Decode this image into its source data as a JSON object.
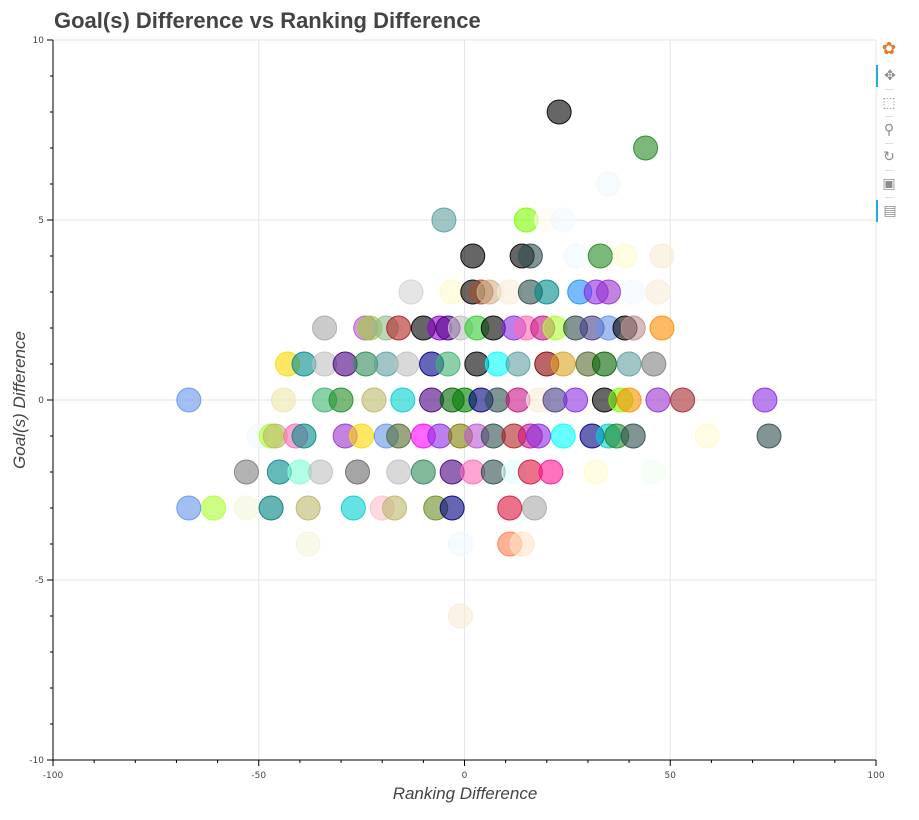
{
  "chart_data": {
    "type": "scatter",
    "title": "Goal(s) Difference vs Ranking Difference",
    "xlabel": "Ranking Difference",
    "ylabel": "Goal(s) Difference",
    "xlim": [
      -100,
      100
    ],
    "ylim": [
      -10,
      10
    ],
    "xticks": [
      -100,
      -50,
      0,
      50,
      100
    ],
    "xtick_labels": [
      "-100",
      "-50",
      "0",
      "50",
      "100"
    ],
    "yticks": [
      -10,
      -5,
      0,
      5,
      10
    ],
    "ytick_labels": [
      "-10",
      "-5",
      "0",
      "5",
      "10"
    ],
    "grid": true,
    "marker_alpha": 0.6,
    "points": [
      {
        "x": 23,
        "y": 8,
        "color": "#000000"
      },
      {
        "x": 44,
        "y": 7,
        "color": "#228b22"
      },
      {
        "x": 35,
        "y": 6,
        "color": "#f0f8ff"
      },
      {
        "x": -5,
        "y": 5,
        "color": "#5f9ea0"
      },
      {
        "x": 15,
        "y": 5,
        "color": "#7cfc00"
      },
      {
        "x": 20,
        "y": 5,
        "color": "#fffaf0"
      },
      {
        "x": 24,
        "y": 5,
        "color": "#f0f8ff"
      },
      {
        "x": 2,
        "y": 4,
        "color": "#000000"
      },
      {
        "x": 14,
        "y": 4,
        "color": "#000000"
      },
      {
        "x": 16,
        "y": 4,
        "color": "#2f4f4f"
      },
      {
        "x": 27,
        "y": 4,
        "color": "#f0f8ff"
      },
      {
        "x": 33,
        "y": 4,
        "color": "#228b22"
      },
      {
        "x": 39,
        "y": 4,
        "color": "#fffacd"
      },
      {
        "x": 48,
        "y": 4,
        "color": "#faebd7"
      },
      {
        "x": -13,
        "y": 3,
        "color": "#d3d3d3"
      },
      {
        "x": -3,
        "y": 3,
        "color": "#fffacd"
      },
      {
        "x": 2,
        "y": 3,
        "color": "#000000"
      },
      {
        "x": 4,
        "y": 3,
        "color": "#a0522d"
      },
      {
        "x": 6,
        "y": 3,
        "color": "#d2b48c"
      },
      {
        "x": 11,
        "y": 3,
        "color": "#faebd7"
      },
      {
        "x": 16,
        "y": 3,
        "color": "#2f4f4f"
      },
      {
        "x": 20,
        "y": 3,
        "color": "#008b8b"
      },
      {
        "x": 28,
        "y": 3,
        "color": "#1e90ff"
      },
      {
        "x": 32,
        "y": 3,
        "color": "#8a2be2"
      },
      {
        "x": 35,
        "y": 3,
        "color": "#9932cc"
      },
      {
        "x": 41,
        "y": 3,
        "color": "#f0f8ff"
      },
      {
        "x": 47,
        "y": 3,
        "color": "#faebd7"
      },
      {
        "x": -34,
        "y": 2,
        "color": "#a9a9a9"
      },
      {
        "x": -24,
        "y": 2,
        "color": "#ba55d3"
      },
      {
        "x": -23,
        "y": 2,
        "color": "#9acd32"
      },
      {
        "x": -19,
        "y": 2,
        "color": "#8fbc8f"
      },
      {
        "x": -16,
        "y": 2,
        "color": "#b22222"
      },
      {
        "x": -10,
        "y": 2,
        "color": "#000000"
      },
      {
        "x": -6,
        "y": 2,
        "color": "#9400d3"
      },
      {
        "x": -4,
        "y": 2,
        "color": "#4b0082"
      },
      {
        "x": -1,
        "y": 2,
        "color": "#c0c0c0"
      },
      {
        "x": 3,
        "y": 2,
        "color": "#32cd32"
      },
      {
        "x": 7,
        "y": 2,
        "color": "#000000"
      },
      {
        "x": 12,
        "y": 2,
        "color": "#8a2be2"
      },
      {
        "x": 15,
        "y": 2,
        "color": "#ff69b4"
      },
      {
        "x": 19,
        "y": 2,
        "color": "#c71585"
      },
      {
        "x": 22,
        "y": 2,
        "color": "#adff2f"
      },
      {
        "x": 27,
        "y": 2,
        "color": "#2f4f4f"
      },
      {
        "x": 31,
        "y": 2,
        "color": "#483d8b"
      },
      {
        "x": 35,
        "y": 2,
        "color": "#6495ed"
      },
      {
        "x": 39,
        "y": 2,
        "color": "#000000"
      },
      {
        "x": 41,
        "y": 2,
        "color": "#bc8f8f"
      },
      {
        "x": 48,
        "y": 2,
        "color": "#ff8c00"
      },
      {
        "x": -43,
        "y": 1,
        "color": "#ffd700"
      },
      {
        "x": -39,
        "y": 1,
        "color": "#008b8b"
      },
      {
        "x": -34,
        "y": 1,
        "color": "#c0c0c0"
      },
      {
        "x": -29,
        "y": 1,
        "color": "#4b0082"
      },
      {
        "x": -24,
        "y": 1,
        "color": "#2e8b57"
      },
      {
        "x": -19,
        "y": 1,
        "color": "#5f9ea0"
      },
      {
        "x": -14,
        "y": 1,
        "color": "#c0c0c0"
      },
      {
        "x": -8,
        "y": 1,
        "color": "#00008b"
      },
      {
        "x": -4,
        "y": 1,
        "color": "#3cb371"
      },
      {
        "x": 3,
        "y": 1,
        "color": "#000000"
      },
      {
        "x": 8,
        "y": 1,
        "color": "#00ffff"
      },
      {
        "x": 13,
        "y": 1,
        "color": "#5f9ea0"
      },
      {
        "x": 20,
        "y": 1,
        "color": "#8b0000"
      },
      {
        "x": 24,
        "y": 1,
        "color": "#daa520"
      },
      {
        "x": 30,
        "y": 1,
        "color": "#556b2f"
      },
      {
        "x": 34,
        "y": 1,
        "color": "#006400"
      },
      {
        "x": 40,
        "y": 1,
        "color": "#5f9ea0"
      },
      {
        "x": 46,
        "y": 1,
        "color": "#808080"
      },
      {
        "x": -67,
        "y": 0,
        "color": "#6495ed"
      },
      {
        "x": -44,
        "y": 0,
        "color": "#eee8aa"
      },
      {
        "x": -34,
        "y": 0,
        "color": "#3cb371"
      },
      {
        "x": -30,
        "y": 0,
        "color": "#228b22"
      },
      {
        "x": -22,
        "y": 0,
        "color": "#bdb76b"
      },
      {
        "x": -15,
        "y": 0,
        "color": "#00ced1"
      },
      {
        "x": -8,
        "y": 0,
        "color": "#4b0082"
      },
      {
        "x": -3,
        "y": 0,
        "color": "#006400"
      },
      {
        "x": 0,
        "y": 0,
        "color": "#008000"
      },
      {
        "x": 4,
        "y": 0,
        "color": "#000080"
      },
      {
        "x": 8,
        "y": 0,
        "color": "#2f4f4f"
      },
      {
        "x": 13,
        "y": 0,
        "color": "#c71585"
      },
      {
        "x": 18,
        "y": 0,
        "color": "#faebd7"
      },
      {
        "x": 22,
        "y": 0,
        "color": "#483d8b"
      },
      {
        "x": 27,
        "y": 0,
        "color": "#8a2be2"
      },
      {
        "x": 34,
        "y": 0,
        "color": "#000000"
      },
      {
        "x": 38,
        "y": 0,
        "color": "#7cfc00"
      },
      {
        "x": 40,
        "y": 0,
        "color": "#ff8c00"
      },
      {
        "x": 47,
        "y": 0,
        "color": "#9932cc"
      },
      {
        "x": 53,
        "y": 0,
        "color": "#a52a2a"
      },
      {
        "x": 73,
        "y": 0,
        "color": "#8a2be2"
      },
      {
        "x": -50,
        "y": -1,
        "color": "#f0f8ff"
      },
      {
        "x": -47,
        "y": -1,
        "color": "#adff2f"
      },
      {
        "x": -46,
        "y": -1,
        "color": "#bdb76b"
      },
      {
        "x": -41,
        "y": -1,
        "color": "#ff69b4"
      },
      {
        "x": -39,
        "y": -1,
        "color": "#008b8b"
      },
      {
        "x": -29,
        "y": -1,
        "color": "#9932cc"
      },
      {
        "x": -25,
        "y": -1,
        "color": "#ffd700"
      },
      {
        "x": -19,
        "y": -1,
        "color": "#6495ed"
      },
      {
        "x": -16,
        "y": -1,
        "color": "#556b2f"
      },
      {
        "x": -10,
        "y": -1,
        "color": "#ff00ff"
      },
      {
        "x": -6,
        "y": -1,
        "color": "#8a2be2"
      },
      {
        "x": -1,
        "y": -1,
        "color": "#808000"
      },
      {
        "x": 3,
        "y": -1,
        "color": "#ba55d3"
      },
      {
        "x": 7,
        "y": -1,
        "color": "#2f4f4f"
      },
      {
        "x": 12,
        "y": -1,
        "color": "#b22222"
      },
      {
        "x": 16,
        "y": -1,
        "color": "#c71585"
      },
      {
        "x": 18,
        "y": -1,
        "color": "#8a2be2"
      },
      {
        "x": 24,
        "y": -1,
        "color": "#00ffff"
      },
      {
        "x": 31,
        "y": -1,
        "color": "#000080"
      },
      {
        "x": 35,
        "y": -1,
        "color": "#00ced1"
      },
      {
        "x": 37,
        "y": -1,
        "color": "#228b22"
      },
      {
        "x": 41,
        "y": -1,
        "color": "#2f4f4f"
      },
      {
        "x": 59,
        "y": -1,
        "color": "#fffacd"
      },
      {
        "x": 74,
        "y": -1,
        "color": "#2f4f4f"
      },
      {
        "x": -53,
        "y": -2,
        "color": "#808080"
      },
      {
        "x": -45,
        "y": -2,
        "color": "#008b8b"
      },
      {
        "x": -40,
        "y": -2,
        "color": "#7fffd4"
      },
      {
        "x": -35,
        "y": -2,
        "color": "#c0c0c0"
      },
      {
        "x": -26,
        "y": -2,
        "color": "#696969"
      },
      {
        "x": -16,
        "y": -2,
        "color": "#c0c0c0"
      },
      {
        "x": -10,
        "y": -2,
        "color": "#2e8b57"
      },
      {
        "x": -3,
        "y": -2,
        "color": "#4b0082"
      },
      {
        "x": 2,
        "y": -2,
        "color": "#ff69b4"
      },
      {
        "x": 7,
        "y": -2,
        "color": "#2f4f4f"
      },
      {
        "x": 12,
        "y": -2,
        "color": "#e0ffff"
      },
      {
        "x": 16,
        "y": -2,
        "color": "#dc143c"
      },
      {
        "x": 21,
        "y": -2,
        "color": "#ff1493"
      },
      {
        "x": 32,
        "y": -2,
        "color": "#fffacd"
      },
      {
        "x": 46,
        "y": -2,
        "color": "#f0fff0"
      },
      {
        "x": -67,
        "y": -3,
        "color": "#6495ed"
      },
      {
        "x": -61,
        "y": -3,
        "color": "#adff2f"
      },
      {
        "x": -53,
        "y": -3,
        "color": "#f5f5dc"
      },
      {
        "x": -47,
        "y": -3,
        "color": "#008080"
      },
      {
        "x": -38,
        "y": -3,
        "color": "#bdb76b"
      },
      {
        "x": -27,
        "y": -3,
        "color": "#00ced1"
      },
      {
        "x": -20,
        "y": -3,
        "color": "#ffc0cb"
      },
      {
        "x": -17,
        "y": -3,
        "color": "#bdb76b"
      },
      {
        "x": -7,
        "y": -3,
        "color": "#6b8e23"
      },
      {
        "x": -3,
        "y": -3,
        "color": "#000080"
      },
      {
        "x": 11,
        "y": -3,
        "color": "#dc143c"
      },
      {
        "x": 17,
        "y": -3,
        "color": "#a9a9a9"
      },
      {
        "x": -38,
        "y": -4,
        "color": "#f5f5dc"
      },
      {
        "x": -1,
        "y": -4,
        "color": "#f0f8ff"
      },
      {
        "x": 11,
        "y": -4,
        "color": "#ff7f50"
      },
      {
        "x": 14,
        "y": -4,
        "color": "#ffe4c4"
      },
      {
        "x": -1,
        "y": -6,
        "color": "#faebd7"
      }
    ]
  },
  "toolbar": {
    "tools": [
      {
        "name": "bokeh-logo-icon",
        "glyph": "✿",
        "color": "#e87722",
        "active": false
      },
      {
        "name": "pan-tool-icon",
        "glyph": "✥",
        "color": "#8c8c8c",
        "active": true
      },
      {
        "name": "box-zoom-tool-icon",
        "glyph": "⬚",
        "color": "#8c8c8c",
        "active": false
      },
      {
        "name": "wheel-zoom-tool-icon",
        "glyph": "⚲",
        "color": "#8c8c8c",
        "active": false
      },
      {
        "name": "reset-tool-icon",
        "glyph": "↻",
        "color": "#8c8c8c",
        "active": false
      },
      {
        "name": "save-tool-icon",
        "glyph": "▣",
        "color": "#8c8c8c",
        "active": false
      },
      {
        "name": "hover-tool-icon",
        "glyph": "▤",
        "color": "#8c8c8c",
        "active": true
      }
    ]
  }
}
